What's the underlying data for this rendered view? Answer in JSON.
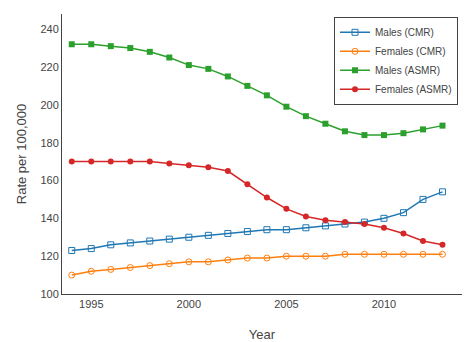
{
  "chart_data": {
    "type": "line",
    "x": [
      1994,
      1995,
      1996,
      1997,
      1998,
      1999,
      2000,
      2001,
      2002,
      2003,
      2004,
      2005,
      2006,
      2007,
      2008,
      2009,
      2010,
      2011,
      2012,
      2013
    ],
    "series": [
      {
        "name": "Males (CMR)",
        "marker": "square-open",
        "values": [
          123,
          124,
          126,
          127,
          128,
          129,
          130,
          131,
          132,
          133,
          134,
          134,
          135,
          136,
          137,
          138,
          140,
          143,
          150,
          154
        ]
      },
      {
        "name": "Females (CMR)",
        "marker": "circle-open",
        "values": [
          110,
          112,
          113,
          114,
          115,
          116,
          117,
          117,
          118,
          119,
          119,
          120,
          120,
          120,
          121,
          121,
          121,
          121,
          121,
          121
        ]
      },
      {
        "name": "Males (ASMR)",
        "marker": "square",
        "values": [
          232,
          232,
          231,
          230,
          228,
          225,
          221,
          219,
          215,
          210,
          205,
          199,
          194,
          190,
          186,
          184,
          184,
          185,
          187,
          189
        ]
      },
      {
        "name": "Females (ASMR)",
        "marker": "circle",
        "values": [
          170,
          170,
          170,
          170,
          170,
          169,
          168,
          167,
          165,
          158,
          151,
          145,
          141,
          139,
          138,
          137,
          135,
          132,
          128,
          126
        ]
      }
    ],
    "xlabel": "Year",
    "ylabel": "Rate per 100,000",
    "xlim": [
      1993.5,
      2014.0
    ],
    "ylim": [
      100,
      248
    ],
    "xticks": [
      1995,
      2000,
      2005,
      2010
    ],
    "yticks": [
      100,
      120,
      140,
      160,
      180,
      200,
      220,
      240
    ],
    "grid": false,
    "legend": "upper right"
  }
}
